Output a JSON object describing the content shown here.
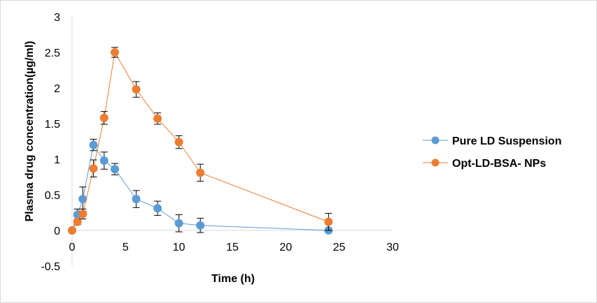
{
  "chart_data": {
    "type": "line",
    "title": "",
    "xlabel": "Time (h)",
    "ylabel": "Plasma drug concentration(µg/ml)",
    "xlim": [
      0,
      30
    ],
    "ylim": [
      -0.5,
      3
    ],
    "xticks": [
      0,
      5,
      10,
      15,
      20,
      25,
      30
    ],
    "yticks": [
      -0.5,
      0,
      0.5,
      1,
      1.5,
      2,
      2.5,
      3
    ],
    "ytick_labels": [
      "-0.5",
      "0",
      "0.5",
      "1",
      "1.5",
      "2",
      "2.5",
      "3"
    ],
    "grid": false,
    "legend_position": "right",
    "series": [
      {
        "name": "Pure LD Suspension",
        "color": "#5b9bd5",
        "x": [
          0,
          0.5,
          1,
          2,
          3,
          4,
          6,
          8,
          10,
          12,
          24
        ],
        "y": [
          0,
          0.22,
          0.44,
          1.2,
          0.98,
          0.86,
          0.44,
          0.31,
          0.1,
          0.07,
          0.0
        ],
        "error": [
          0.02,
          0.08,
          0.17,
          0.08,
          0.12,
          0.08,
          0.12,
          0.1,
          0.12,
          0.1,
          0.02
        ]
      },
      {
        "name": "Opt-LD-BSA- NPs",
        "color": "#ed7d31",
        "x": [
          0,
          0.5,
          1,
          2,
          3,
          4,
          6,
          8,
          10,
          12,
          24
        ],
        "y": [
          0,
          0.12,
          0.23,
          0.87,
          1.58,
          2.5,
          1.98,
          1.57,
          1.24,
          0.81,
          0.12
        ],
        "error": [
          0.02,
          0.04,
          0.07,
          0.12,
          0.09,
          0.07,
          0.11,
          0.08,
          0.09,
          0.12,
          0.12
        ]
      }
    ]
  }
}
